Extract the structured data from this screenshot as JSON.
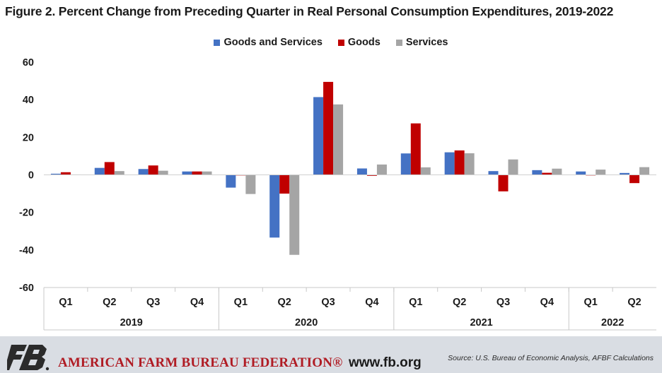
{
  "header": {
    "title": "Figure 2. Percent Change from Preceding Quarter in Real Personal Consumption Expenditures, 2019-2022"
  },
  "footer": {
    "organization": "AMERICAN FARM BUREAU FEDERATION®",
    "website": "www.fb.org",
    "source": "Source: U.S. Bureau of Economic Analysis, AFBF Calculations",
    "logo_icon": "fb-logo-icon"
  },
  "chart_data": {
    "type": "bar",
    "title": "Figure 2. Percent Change from Preceding Quarter in Real Personal Consumption Expenditures, 2019-2022",
    "legend_position": "top-center",
    "grid": false,
    "ylim": [
      -60,
      60
    ],
    "yticks": [
      60,
      40,
      20,
      0,
      -20,
      -40,
      -60
    ],
    "categories": [
      "Q1",
      "Q2",
      "Q3",
      "Q4",
      "Q1",
      "Q2",
      "Q3",
      "Q4",
      "Q1",
      "Q2",
      "Q3",
      "Q4",
      "Q1",
      "Q2"
    ],
    "groups": [
      {
        "label": "2019",
        "count": 4
      },
      {
        "label": "2020",
        "count": 4
      },
      {
        "label": "2021",
        "count": 4
      },
      {
        "label": "2022",
        "count": 2
      }
    ],
    "series": [
      {
        "name": "Goods and Services",
        "color": "#4472c4",
        "values": [
          0.6,
          3.7,
          3.1,
          1.8,
          -6.8,
          -33.4,
          41.4,
          3.4,
          11.4,
          12.0,
          2.0,
          2.5,
          1.8,
          1.0
        ]
      },
      {
        "name": "Goods",
        "color": "#c00000",
        "values": [
          1.4,
          6.8,
          5.0,
          1.8,
          -0.1,
          -10.0,
          49.5,
          -0.5,
          27.4,
          13.0,
          -8.8,
          1.1,
          -0.3,
          -4.4
        ]
      },
      {
        "name": "Services",
        "color": "#a5a5a5",
        "values": [
          0.2,
          2.0,
          2.2,
          1.8,
          -10.2,
          -42.6,
          37.5,
          5.5,
          4.0,
          11.5,
          8.2,
          3.3,
          2.8,
          4.1
        ]
      }
    ]
  }
}
